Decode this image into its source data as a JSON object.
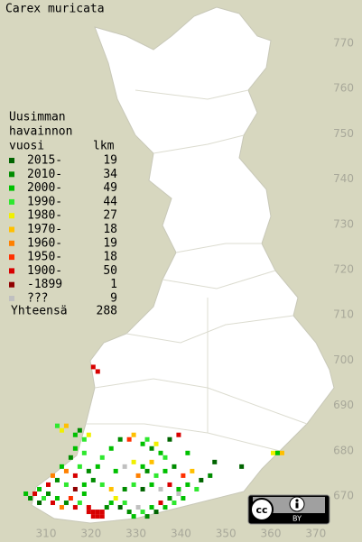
{
  "title": "Carex muricata",
  "legend": {
    "heading": [
      "Uusimman",
      "havainnon",
      "vuosi"
    ],
    "count_heading": "lkm",
    "rows": [
      {
        "label": "2015-",
        "count": 19,
        "color": "#006400"
      },
      {
        "label": "2010-",
        "count": 34,
        "color": "#008c00"
      },
      {
        "label": "2000-",
        "count": 49,
        "color": "#00c000"
      },
      {
        "label": "1990-",
        "count": 44,
        "color": "#2ee82e"
      },
      {
        "label": "1980-",
        "count": 27,
        "color": "#f0f000"
      },
      {
        "label": "1970-",
        "count": 18,
        "color": "#ffc000"
      },
      {
        "label": "1960-",
        "count": 19,
        "color": "#ff8000"
      },
      {
        "label": "1950-",
        "count": 18,
        "color": "#ff3000"
      },
      {
        "label": "1900-",
        "count": 50,
        "color": "#d80000"
      },
      {
        "label": "-1899",
        "count": 1,
        "color": "#900000"
      },
      {
        "label": "???",
        "count": 9,
        "color": "#c0c0c0"
      }
    ],
    "total_label": "Yhteensä",
    "total": 288
  },
  "axes": {
    "north": [
      770,
      760,
      750,
      740,
      730,
      720,
      710,
      700,
      690,
      680,
      670
    ],
    "east": [
      310,
      320,
      330,
      340,
      350,
      360,
      370
    ]
  },
  "license": {
    "mark": "cc",
    "by": "BY"
  },
  "records": [
    [
      320,
      698,
      8
    ],
    [
      321,
      697,
      8
    ],
    [
      339,
      683,
      8
    ],
    [
      341,
      679,
      2
    ],
    [
      337,
      682,
      0
    ],
    [
      362,
      679,
      5
    ],
    [
      360,
      679,
      4
    ],
    [
      361,
      679,
      2
    ],
    [
      353,
      676,
      0
    ],
    [
      347,
      677,
      0
    ],
    [
      312,
      685,
      3
    ],
    [
      313,
      684,
      4
    ],
    [
      314,
      685,
      5
    ],
    [
      316,
      683,
      2
    ],
    [
      317,
      684,
      1
    ],
    [
      318,
      682,
      3
    ],
    [
      319,
      683,
      4
    ],
    [
      316,
      680,
      2
    ],
    [
      318,
      679,
      3
    ],
    [
      315,
      678,
      1
    ],
    [
      313,
      676,
      2
    ],
    [
      314,
      675,
      6
    ],
    [
      316,
      674,
      8
    ],
    [
      317,
      676,
      3
    ],
    [
      319,
      675,
      1
    ],
    [
      321,
      676,
      2
    ],
    [
      322,
      678,
      3
    ],
    [
      324,
      680,
      2
    ],
    [
      326,
      682,
      1
    ],
    [
      328,
      682,
      7
    ],
    [
      329,
      683,
      5
    ],
    [
      331,
      681,
      2
    ],
    [
      332,
      682,
      3
    ],
    [
      333,
      680,
      1
    ],
    [
      334,
      681,
      4
    ],
    [
      335,
      679,
      2
    ],
    [
      336,
      678,
      3
    ],
    [
      333,
      677,
      5
    ],
    [
      331,
      676,
      2
    ],
    [
      329,
      677,
      4
    ],
    [
      327,
      676,
      10
    ],
    [
      325,
      675,
      2
    ],
    [
      330,
      674,
      6
    ],
    [
      332,
      675,
      1
    ],
    [
      334,
      674,
      3
    ],
    [
      336,
      675,
      2
    ],
    [
      338,
      676,
      1
    ],
    [
      340,
      674,
      7
    ],
    [
      342,
      675,
      5
    ],
    [
      341,
      672,
      2
    ],
    [
      344,
      673,
      0
    ],
    [
      346,
      674,
      1
    ],
    [
      343,
      671,
      3
    ],
    [
      339,
      671,
      2
    ],
    [
      337,
      672,
      8
    ],
    [
      335,
      671,
      10
    ],
    [
      333,
      672,
      2
    ],
    [
      331,
      671,
      0
    ],
    [
      329,
      672,
      3
    ],
    [
      327,
      671,
      1
    ],
    [
      305,
      670,
      2
    ],
    [
      306,
      669,
      1
    ],
    [
      307,
      670,
      8
    ],
    [
      308,
      668,
      0
    ],
    [
      309,
      669,
      3
    ],
    [
      310,
      670,
      1
    ],
    [
      311,
      668,
      8
    ],
    [
      312,
      669,
      2
    ],
    [
      313,
      667,
      6
    ],
    [
      314,
      668,
      1
    ],
    [
      315,
      669,
      7
    ],
    [
      316,
      667,
      8
    ],
    [
      317,
      668,
      3
    ],
    [
      318,
      670,
      2
    ],
    [
      319,
      667,
      8
    ],
    [
      320,
      666,
      8
    ],
    [
      320,
      665,
      8
    ],
    [
      321,
      666,
      8
    ],
    [
      321,
      665,
      8
    ],
    [
      322,
      666,
      8
    ],
    [
      322,
      665,
      8
    ],
    [
      319,
      666,
      8
    ],
    [
      323,
      667,
      1
    ],
    [
      324,
      668,
      2
    ],
    [
      325,
      669,
      4
    ],
    [
      326,
      667,
      0
    ],
    [
      327,
      668,
      3
    ],
    [
      328,
      666,
      1
    ],
    [
      329,
      665,
      2
    ],
    [
      330,
      667,
      10
    ],
    [
      331,
      666,
      3
    ],
    [
      332,
      665,
      1
    ],
    [
      333,
      667,
      2
    ],
    [
      334,
      666,
      0
    ],
    [
      335,
      668,
      8
    ],
    [
      336,
      667,
      2
    ],
    [
      337,
      669,
      1
    ],
    [
      338,
      668,
      3
    ],
    [
      339,
      670,
      10
    ],
    [
      340,
      669,
      2
    ],
    [
      324,
      671,
      5
    ],
    [
      322,
      672,
      3
    ],
    [
      320,
      673,
      1
    ],
    [
      318,
      672,
      2
    ],
    [
      316,
      671,
      9
    ],
    [
      314,
      672,
      3
    ],
    [
      312,
      673,
      1
    ],
    [
      310,
      672,
      8
    ],
    [
      308,
      671,
      2
    ],
    [
      311,
      674,
      6
    ]
  ]
}
